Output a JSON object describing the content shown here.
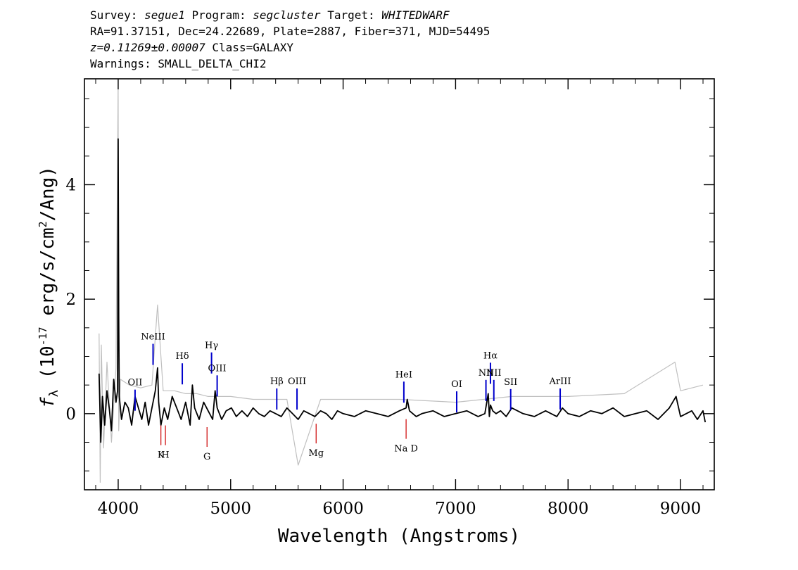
{
  "header": {
    "survey_label": "Survey:",
    "survey": "segue1",
    "program_label": "Program:",
    "program": "segcluster",
    "target_label": "Target:",
    "target": "WHITEDWARF",
    "line2": "RA=91.37151, Dec=24.22689, Plate=2887, Fiber=371, MJD=54495",
    "redshift": "z=0.11269±0.00007",
    "class_text": "Class=GALAXY",
    "warnings": "Warnings: SMALL_DELTA_CHI2"
  },
  "chart_data": {
    "type": "line",
    "xlabel": "Wavelength (Angstroms)",
    "ylabel": "f_λ (10^-17 erg/s/cm^2/Ang)",
    "xlim": [
      3700,
      9300
    ],
    "ylim": [
      -1.33,
      5.85
    ],
    "x_ticks": [
      4000,
      5000,
      6000,
      7000,
      8000,
      9000
    ],
    "y_ticks": [
      0,
      2,
      4
    ],
    "colors": {
      "spectrum": "#000000",
      "error": "#c0c0c0",
      "emission": "#0000cc",
      "absorption": "#cc0000"
    },
    "series": [
      {
        "role": "spectrum",
        "x": [
          3830,
          3845,
          3860,
          3880,
          3900,
          3920,
          3940,
          3960,
          3980,
          3995,
          4000,
          4005,
          4010,
          4030,
          4060,
          4090,
          4120,
          4150,
          4180,
          4210,
          4240,
          4270,
          4300,
          4330,
          4350,
          4360,
          4380,
          4410,
          4440,
          4480,
          4520,
          4560,
          4600,
          4640,
          4660,
          4680,
          4720,
          4760,
          4800,
          4840,
          4862,
          4880,
          4920,
          4960,
          5007,
          5050,
          5100,
          5150,
          5200,
          5250,
          5300,
          5350,
          5400,
          5450,
          5500,
          5550,
          5600,
          5650,
          5700,
          5750,
          5800,
          5850,
          5900,
          5950,
          6000,
          6100,
          6200,
          6300,
          6400,
          6500,
          6560,
          6570,
          6590,
          6650,
          6700,
          6800,
          6900,
          7000,
          7100,
          7200,
          7260,
          7290,
          7300,
          7310,
          7330,
          7360,
          7400,
          7450,
          7500,
          7600,
          7700,
          7800,
          7900,
          7950,
          8000,
          8100,
          8200,
          8300,
          8400,
          8500,
          8600,
          8700,
          8800,
          8900,
          8960,
          9000,
          9100,
          9150,
          9200,
          9220
        ],
        "values": [
          0.7,
          -0.5,
          0.3,
          -0.2,
          0.4,
          0.1,
          -0.3,
          0.6,
          0.2,
          0.4,
          4.8,
          1.7,
          0.3,
          -0.1,
          0.2,
          0.1,
          -0.2,
          0.3,
          0.1,
          -0.1,
          0.2,
          -0.2,
          0.1,
          0.4,
          0.8,
          0.2,
          -0.2,
          0.1,
          -0.1,
          0.3,
          0.1,
          -0.1,
          0.2,
          -0.2,
          0.5,
          0.1,
          -0.1,
          0.2,
          0.05,
          -0.1,
          0.4,
          0.1,
          -0.1,
          0.05,
          0.1,
          -0.05,
          0.05,
          -0.05,
          0.1,
          0.0,
          -0.05,
          0.05,
          0.0,
          -0.05,
          0.1,
          0.0,
          -0.1,
          0.05,
          0.0,
          -0.05,
          0.05,
          0.0,
          -0.1,
          0.05,
          0.0,
          -0.05,
          0.05,
          0.0,
          -0.05,
          0.05,
          0.1,
          0.25,
          0.05,
          -0.05,
          0.0,
          0.05,
          -0.05,
          0.0,
          0.05,
          -0.05,
          0.0,
          0.35,
          -0.05,
          0.15,
          0.05,
          0.0,
          0.05,
          -0.05,
          0.1,
          0.0,
          -0.05,
          0.05,
          -0.05,
          0.1,
          0.0,
          -0.05,
          0.05,
          0.0,
          0.1,
          -0.05,
          0.0,
          0.05,
          -0.1,
          0.1,
          0.3,
          -0.05,
          0.05,
          -0.1,
          0.05,
          -0.15
        ]
      },
      {
        "role": "error",
        "x": [
          3830,
          3840,
          3850,
          3870,
          3900,
          3940,
          3980,
          4000,
          4005,
          4020,
          4100,
          4200,
          4300,
          4350,
          4400,
          4500,
          4600,
          4700,
          4800,
          5000,
          5200,
          5500,
          5600,
          5800,
          6000,
          6500,
          7000,
          7500,
          8000,
          8500,
          8950,
          9000,
          9200
        ],
        "values": [
          1.4,
          -1.2,
          1.2,
          -0.6,
          0.9,
          -0.5,
          0.8,
          5.85,
          -0.3,
          0.6,
          0.5,
          0.45,
          0.5,
          1.9,
          0.4,
          0.4,
          0.35,
          0.35,
          0.3,
          0.3,
          0.25,
          0.25,
          -0.9,
          0.25,
          0.25,
          0.25,
          0.2,
          0.3,
          0.3,
          0.35,
          0.9,
          0.4,
          0.5
        ]
      }
    ],
    "emission_lines": [
      {
        "label": "OII",
        "x": 4150,
        "y": 0.42
      },
      {
        "label": "NeIII",
        "x": 4310,
        "y": 1.22
      },
      {
        "label": "Hδ",
        "x": 4570,
        "y": 0.88
      },
      {
        "label": "Hγ",
        "x": 4830,
        "y": 1.07
      },
      {
        "label": "OIII",
        "x": 4880,
        "y": 0.67
      },
      {
        "label": "Hβ",
        "x": 5410,
        "y": 0.44
      },
      {
        "label": "OIII",
        "x": 5590,
        "y": 0.44
      },
      {
        "label": "HeI",
        "x": 6540,
        "y": 0.56
      },
      {
        "label": "OI",
        "x": 7010,
        "y": 0.39
      },
      {
        "label": "NII",
        "x": 7270,
        "y": 0.59
      },
      {
        "label": "Hα",
        "x": 7310,
        "y": 0.89
      },
      {
        "label": "NII",
        "x": 7340,
        "y": 0.59
      },
      {
        "label": "SII",
        "x": 7490,
        "y": 0.43
      },
      {
        "label": "ArIII",
        "x": 7930,
        "y": 0.44
      }
    ],
    "absorption_lines": [
      {
        "label": "K",
        "x": 4380,
        "y": -0.55
      },
      {
        "label": "H",
        "x": 4420,
        "y": -0.55
      },
      {
        "label": "G",
        "x": 4790,
        "y": -0.58
      },
      {
        "label": "Mg",
        "x": 5760,
        "y": -0.52
      },
      {
        "label": "Na D",
        "x": 6560,
        "y": -0.44
      }
    ]
  }
}
